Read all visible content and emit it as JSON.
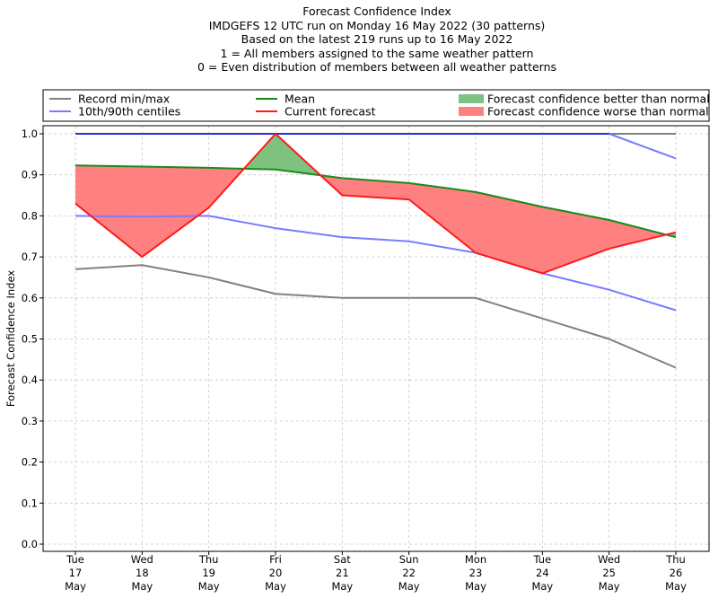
{
  "titles": [
    "Forecast Confidence Index",
    "IMDGEFS 12 UTC run on Monday 16 May 2022 (30 patterns)",
    "Based on the latest 219 runs up to 16 May 2022",
    "1 = All members assigned to the same weather pattern",
    "0 = Even distribution of members between all weather patterns"
  ],
  "colors": {
    "record": "#808080",
    "centiles": "#7b7bff",
    "maxline": "#2a2ae0",
    "mean": "#1a8a1a",
    "current": "#ff1a1a",
    "better_fill": "#7fc27f",
    "worse_fill": "#ff8080",
    "grid": "#c8c8c8"
  },
  "legend": [
    {
      "label": "Record min/max",
      "kind": "line",
      "color": "#808080"
    },
    {
      "label": "10th/90th centiles",
      "kind": "line",
      "color": "#7b7bff"
    },
    {
      "label": "Mean",
      "kind": "line",
      "color": "#1a8a1a"
    },
    {
      "label": "Current forecast",
      "kind": "line",
      "color": "#ff1a1a"
    },
    {
      "label": "Forecast confidence better than normal",
      "kind": "patch",
      "color": "#7fc27f"
    },
    {
      "label": "Forecast confidence worse than normal",
      "kind": "patch",
      "color": "#ff8080"
    }
  ],
  "chart_data": {
    "type": "line",
    "ylabel": "Forecast Confidence Index",
    "ylim": [
      0,
      1
    ],
    "yticks": [
      "0.0",
      "0.1",
      "0.2",
      "0.3",
      "0.4",
      "0.5",
      "0.6",
      "0.7",
      "0.8",
      "0.9",
      "1.0"
    ],
    "grid": true,
    "legend_placement": "top",
    "categories": [
      [
        "Tue",
        "17",
        "May"
      ],
      [
        "Wed",
        "18",
        "May"
      ],
      [
        "Thu",
        "19",
        "May"
      ],
      [
        "Fri",
        "20",
        "May"
      ],
      [
        "Sat",
        "21",
        "May"
      ],
      [
        "Sun",
        "22",
        "May"
      ],
      [
        "Mon",
        "23",
        "May"
      ],
      [
        "Tue",
        "24",
        "May"
      ],
      [
        "Wed",
        "25",
        "May"
      ],
      [
        "Thu",
        "26",
        "May"
      ]
    ],
    "series": [
      {
        "name": "Record min",
        "values": [
          0.67,
          0.68,
          0.65,
          0.61,
          0.6,
          0.6,
          0.6,
          0.55,
          0.5,
          0.43
        ]
      },
      {
        "name": "Record max",
        "values": [
          1.0,
          1.0,
          1.0,
          1.0,
          1.0,
          1.0,
          1.0,
          1.0,
          1.0,
          1.0
        ]
      },
      {
        "name": "10th centile",
        "values": [
          0.8,
          0.798,
          0.8,
          0.77,
          0.748,
          0.738,
          0.71,
          0.66,
          0.62,
          0.57
        ]
      },
      {
        "name": "90th centile",
        "values": [
          1.0,
          1.0,
          1.0,
          1.0,
          1.0,
          1.0,
          1.0,
          1.0,
          1.0,
          0.94
        ]
      },
      {
        "name": "Mean",
        "values": [
          0.923,
          0.92,
          0.917,
          0.913,
          0.892,
          0.88,
          0.858,
          0.822,
          0.79,
          0.748
        ]
      },
      {
        "name": "Current forecast",
        "values": [
          0.83,
          0.7,
          0.82,
          1.0,
          0.85,
          0.84,
          0.71,
          0.66,
          0.72,
          0.76
        ]
      }
    ]
  }
}
